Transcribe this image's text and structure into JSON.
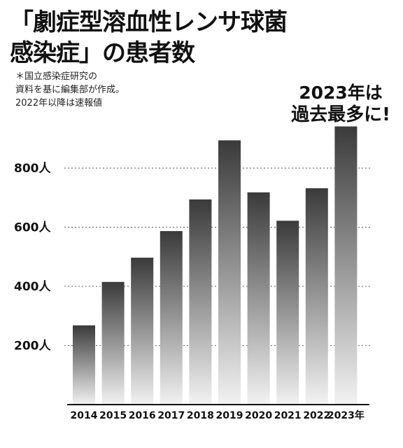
{
  "title": {
    "line1": "「劇症型溶血性レンサ球菌",
    "line2": "感染症」の患者数"
  },
  "note": {
    "line1": "＊国立感染症研究の",
    "line2": "資料を基に編集部が作成。",
    "line3": "2022年以降は速報値"
  },
  "callout": {
    "line1": "2023年は",
    "line2": "過去最多に!"
  },
  "chart_data": {
    "type": "bar",
    "categories": [
      "2014",
      "2015",
      "2016",
      "2017",
      "2018",
      "2019",
      "2020",
      "2021",
      "2022",
      "2023年"
    ],
    "values": [
      268,
      415,
      497,
      587,
      694,
      894,
      718,
      622,
      732,
      941
    ],
    "yticks": [
      200,
      400,
      600,
      800
    ],
    "ytick_labels": [
      "200人",
      "400人",
      "600人",
      "800人"
    ],
    "ylim": [
      0,
      960
    ],
    "grid": true,
    "bar_gradient": [
      "#3a3a3a",
      "#f2f2f2"
    ]
  }
}
